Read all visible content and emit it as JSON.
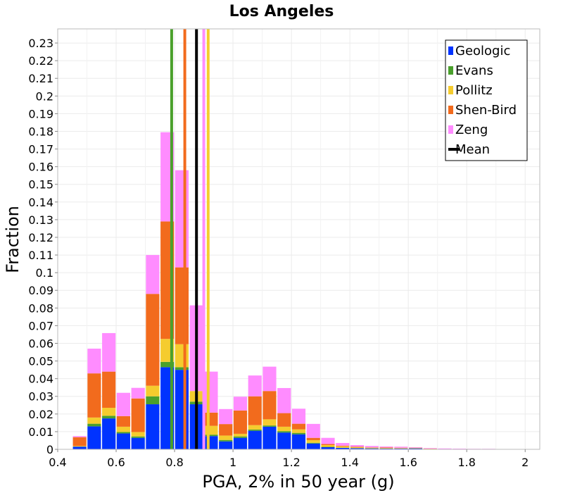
{
  "chart_data": {
    "type": "bar",
    "stacked": true,
    "title": "Los Angeles",
    "xlabel": "PGA, 2% in 50 year (g)",
    "ylabel": "Fraction",
    "xlim": [
      0.4,
      2.05
    ],
    "ylim": [
      0,
      0.238
    ],
    "bin_width": 0.05,
    "x_ticks": [
      0.4,
      0.6,
      0.8,
      1,
      1.2,
      1.4,
      1.6,
      1.8,
      2
    ],
    "x_tick_labels": [
      "0.4",
      "0.6",
      "0.8",
      "1",
      "1.2",
      "1.4",
      "1.6",
      "1.8",
      "2"
    ],
    "y_ticks": [
      0,
      0.01,
      0.02,
      0.03,
      0.04,
      0.05,
      0.06,
      0.07,
      0.08,
      0.09,
      0.1,
      0.11,
      0.12,
      0.13,
      0.14,
      0.15,
      0.16,
      0.17,
      0.18,
      0.19,
      0.2,
      0.21,
      0.22,
      0.23
    ],
    "y_tick_labels": [
      "0",
      "0.01",
      "0.02",
      "0.03",
      "0.04",
      "0.05",
      "0.06",
      "0.07",
      "0.08",
      "0.09",
      "0.1",
      "0.11",
      "0.12",
      "0.13",
      "0.14",
      "0.15",
      "0.16",
      "0.17",
      "0.18",
      "0.19",
      "0.2",
      "0.21",
      "0.22",
      "0.23"
    ],
    "grid": true,
    "legend_position": "top-right",
    "x": [
      0.475,
      0.525,
      0.575,
      0.625,
      0.675,
      0.725,
      0.775,
      0.825,
      0.875,
      0.925,
      0.975,
      1.025,
      1.075,
      1.125,
      1.175,
      1.225,
      1.275,
      1.325,
      1.375,
      1.425,
      1.475,
      1.525,
      1.575,
      1.625,
      1.675,
      1.725,
      1.775,
      1.825,
      1.875,
      1.925,
      1.975,
      2.025
    ],
    "series": [
      {
        "name": "Geologic",
        "color": "#0033ff",
        "values": [
          0.0015,
          0.013,
          0.0175,
          0.009,
          0.0065,
          0.0255,
          0.0465,
          0.045,
          0.0255,
          0.0075,
          0.0045,
          0.0065,
          0.0105,
          0.0128,
          0.0095,
          0.0085,
          0.0033,
          0.0012,
          0.0008,
          0.0006,
          0.0005,
          0.0004,
          0.0004,
          0.0005,
          0.0002,
          0.0001,
          0.0001,
          0.0001,
          0.0001,
          0.0001,
          0.0001,
          0
        ]
      },
      {
        "name": "Evans",
        "color": "#4aa02c",
        "values": [
          0.0001,
          0.0015,
          0.0015,
          0.0008,
          0.0008,
          0.0045,
          0.003,
          0.0015,
          0.0015,
          0.0008,
          0.0008,
          0.0008,
          0.0007,
          0.0007,
          0.0008,
          0.0008,
          0.0004,
          0.0002,
          0.0001,
          0.0001,
          0.0001,
          0.0001,
          0.0001,
          0.0001,
          0,
          0,
          0,
          0,
          0,
          0,
          0,
          0
        ]
      },
      {
        "name": "Pollitz",
        "color": "#f5cc2e",
        "values": [
          0.0003,
          0.0035,
          0.0045,
          0.003,
          0.0025,
          0.006,
          0.013,
          0.013,
          0.006,
          0.005,
          0.0025,
          0.0015,
          0.0025,
          0.0035,
          0.0025,
          0.002,
          0.0015,
          0.001,
          0.0008,
          0.0005,
          0.0003,
          0.0003,
          0.0002,
          0.0001,
          0.0001,
          0,
          0,
          0,
          0,
          0,
          0,
          0
        ]
      },
      {
        "name": "Shen-Bird",
        "color": "#f26b1d",
        "values": [
          0.005,
          0.025,
          0.0205,
          0.006,
          0.019,
          0.052,
          0.0665,
          0.0435,
          0,
          0.0075,
          0.0065,
          0.0132,
          0.0163,
          0.016,
          0.0077,
          0.0032,
          0.0013,
          0.0006,
          0.0004,
          0.0003,
          0.0002,
          0.0002,
          0.0002,
          0.0002,
          0.0001,
          0.0001,
          0.0001,
          0,
          0,
          0,
          0,
          0
        ]
      },
      {
        "name": "Zeng",
        "color": "#ff8cff",
        "values": [
          0.0006,
          0.014,
          0.0218,
          0.0132,
          0.006,
          0.022,
          0.0505,
          0.055,
          0.0485,
          0.0232,
          0.0085,
          0.0078,
          0.0118,
          0.0138,
          0.0142,
          0.0085,
          0.0079,
          0.0035,
          0.0015,
          0.0009,
          0.0008,
          0.0006,
          0.0006,
          0.0003,
          0.0003,
          0.0003,
          0.0002,
          0.0002,
          0.0002,
          0.0001,
          0.0001,
          0
        ]
      }
    ],
    "vertical_lines": [
      {
        "name": "Evans",
        "x": 0.79,
        "color": "#4aa02c"
      },
      {
        "name": "Shen-Bird",
        "x": 0.835,
        "color": "#f26b1d"
      },
      {
        "name": "Mean",
        "x": 0.875,
        "color": "#000000"
      },
      {
        "name": "Zeng",
        "x": 0.9,
        "color": "#ff8cff"
      },
      {
        "name": "Pollitz",
        "x": 0.915,
        "color": "#f5cc2e"
      }
    ],
    "legend": [
      {
        "label": "Geologic",
        "color": "#0033ff",
        "kind": "box"
      },
      {
        "label": "Evans",
        "color": "#4aa02c",
        "kind": "box"
      },
      {
        "label": "Pollitz",
        "color": "#f5cc2e",
        "kind": "box"
      },
      {
        "label": "Shen-Bird",
        "color": "#f26b1d",
        "kind": "box"
      },
      {
        "label": "Zeng",
        "color": "#ff8cff",
        "kind": "box"
      },
      {
        "label": "Mean",
        "color": "#000000",
        "kind": "line"
      }
    ]
  }
}
